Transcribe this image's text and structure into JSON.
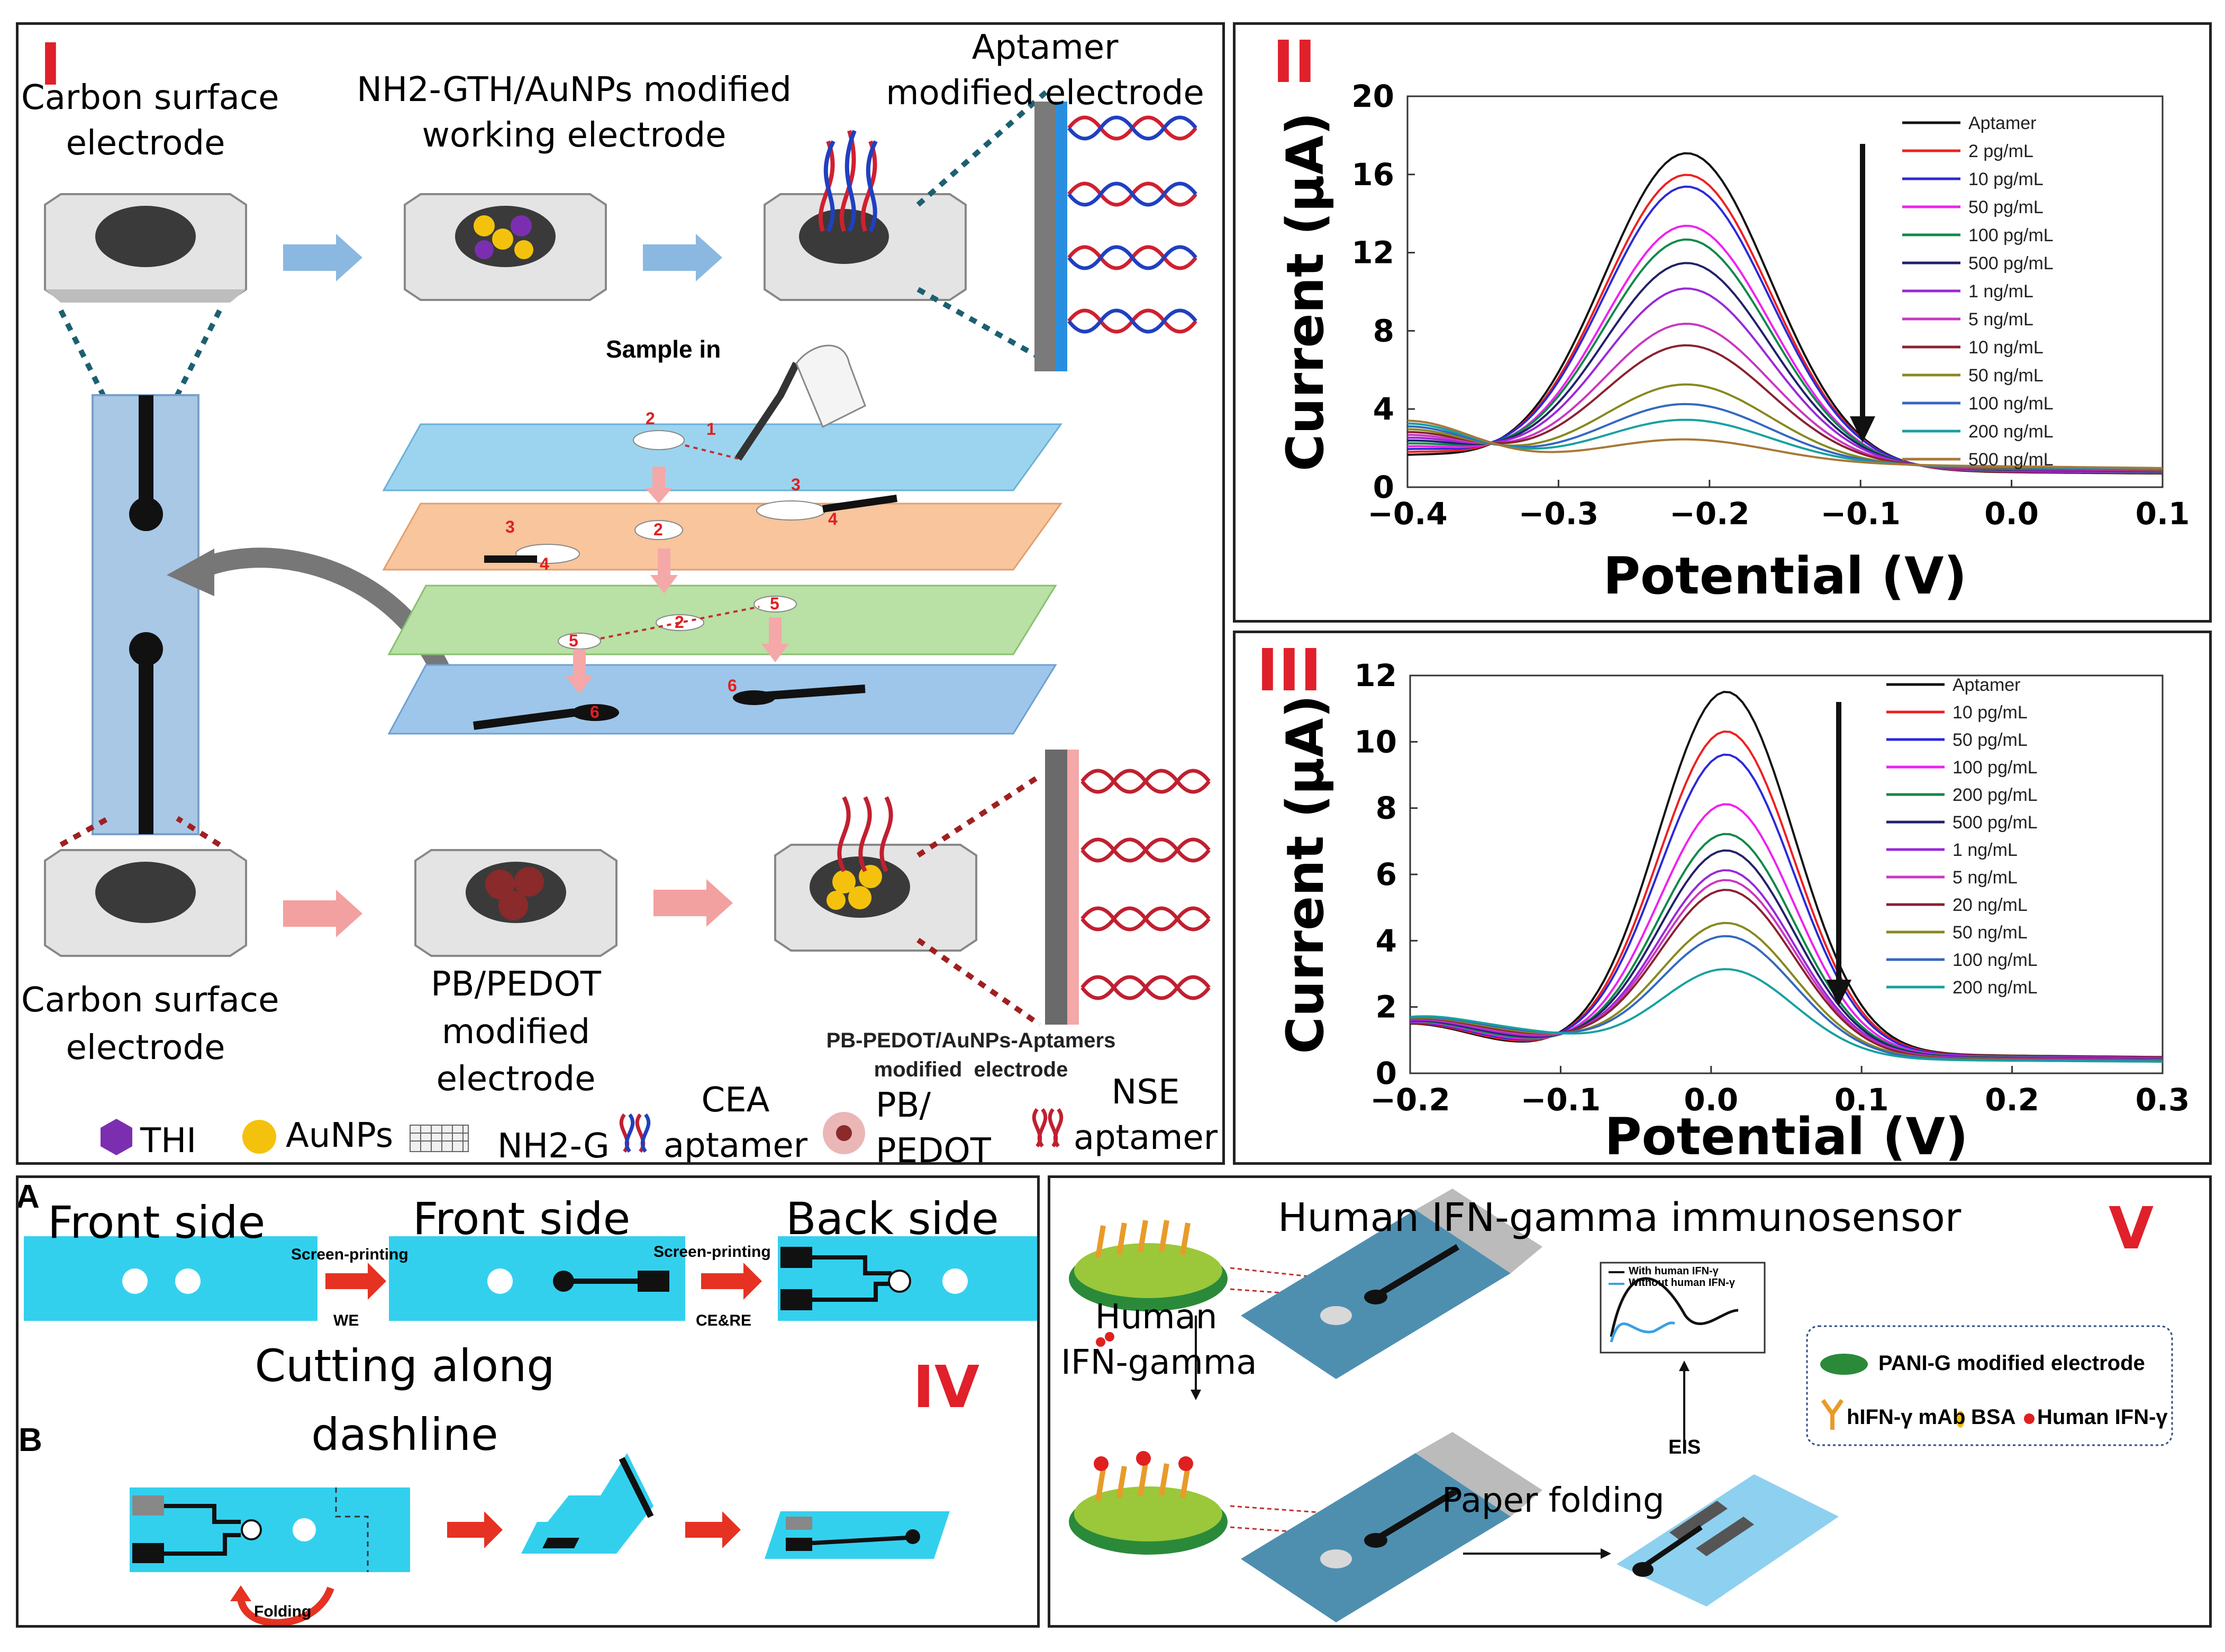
{
  "colors": {
    "roman": "#e0202a",
    "accent_blue": "#5aa7e0",
    "accent_red": "#f08c8c",
    "cyan": "#33d0ee",
    "teal": "#2d6f8f"
  },
  "panel_I": {
    "roman": "I",
    "carbon_top": "Carbon surface\nelectrode",
    "nh2_gth": "NH2-GTH/AuNPs modified\nworking electrode",
    "aptamer_mod": "Aptamer\nmodified electrode",
    "sample_in": "Sample in",
    "carbon_bottom": "Carbon surface\nelectrode",
    "pb_pedot": "PB/PEDOT\nmodified\nelectrode",
    "pb_pedot_aunps": "PB-PEDOT/AuNPs-Aptamers",
    "modified_electrode": "modified  electrode",
    "legend": {
      "thi": "THI",
      "aunps": "AuNPs",
      "nh2g": "NH2-G",
      "cea": "CEA\naptamer",
      "pbpedot": "PB/\nPEDOT",
      "nse": "NSE\naptamer"
    },
    "layer_numbers": [
      "1",
      "2",
      "2",
      "3",
      "3",
      "4",
      "4",
      "5",
      "2",
      "5",
      "6",
      "6"
    ]
  },
  "chart_data": [
    {
      "type": "line",
      "panel": "II",
      "title": "",
      "xlabel": "Potential (V)",
      "ylabel": "Current (μA)",
      "xlim": [
        -0.4,
        0.1
      ],
      "ylim": [
        0,
        20
      ],
      "xticks": [
        "-0.4",
        "-0.3",
        "-0.2",
        "-0.1",
        "0.0",
        "0.1"
      ],
      "yticks": [
        "0",
        "4",
        "8",
        "12",
        "16",
        "20"
      ],
      "peak_x": -0.215,
      "series": [
        {
          "name": "Aptamer",
          "color": "#111111",
          "peak": 17.2
        },
        {
          "name": "2 pg/mL",
          "color": "#ee2020",
          "peak": 16.1
        },
        {
          "name": "10 pg/mL",
          "color": "#2a2ad8",
          "peak": 15.5
        },
        {
          "name": "50 pg/mL",
          "color": "#ee22ee",
          "peak": 13.5
        },
        {
          "name": "100 pg/mL",
          "color": "#10884a",
          "peak": 12.8
        },
        {
          "name": "500 pg/mL",
          "color": "#22206a",
          "peak": 11.6
        },
        {
          "name": "1 ng/mL",
          "color": "#9a28d8",
          "peak": 10.3
        },
        {
          "name": "5 ng/mL",
          "color": "#c838c0",
          "peak": 8.5
        },
        {
          "name": "10 ng/mL",
          "color": "#8a2230",
          "peak": 7.4
        },
        {
          "name": "50 ng/mL",
          "color": "#888820",
          "peak": 5.4
        },
        {
          "name": "100 ng/mL",
          "color": "#3468c0",
          "peak": 4.4
        },
        {
          "name": "200 ng/mL",
          "color": "#18a0a0",
          "peak": 3.6
        },
        {
          "name": "500 ng/mL",
          "color": "#a87838",
          "peak": 2.6
        }
      ]
    },
    {
      "type": "line",
      "panel": "III",
      "title": "",
      "xlabel": "Potential (V)",
      "ylabel": "Current (μA)",
      "xlim": [
        -0.2,
        0.3
      ],
      "ylim": [
        0,
        12
      ],
      "xticks": [
        "-0.2",
        "-0.1",
        "0.0",
        "0.1",
        "0.2",
        "0.3"
      ],
      "yticks": [
        "0",
        "2",
        "4",
        "6",
        "8",
        "10",
        "12"
      ],
      "peak_x": 0.01,
      "series": [
        {
          "name": "Aptamer",
          "color": "#111111",
          "peak": 11.6
        },
        {
          "name": "10 pg/mL",
          "color": "#ee2020",
          "peak": 10.4
        },
        {
          "name": "50 pg/mL",
          "color": "#2a2ad8",
          "peak": 9.7
        },
        {
          "name": "100 pg/mL",
          "color": "#ee22ee",
          "peak": 8.2
        },
        {
          "name": "200 pg/mL",
          "color": "#10884a",
          "peak": 7.3
        },
        {
          "name": "500 pg/mL",
          "color": "#22206a",
          "peak": 6.8
        },
        {
          "name": "1 ng/mL",
          "color": "#9a28d8",
          "peak": 6.2
        },
        {
          "name": "5 ng/mL",
          "color": "#c838c0",
          "peak": 5.9
        },
        {
          "name": "20 ng/mL",
          "color": "#8a2230",
          "peak": 5.6
        },
        {
          "name": "50 ng/mL",
          "color": "#888820",
          "peak": 4.6
        },
        {
          "name": "100 ng/mL",
          "color": "#3468c0",
          "peak": 4.2
        },
        {
          "name": "200 ng/mL",
          "color": "#18a0a0",
          "peak": 3.2
        }
      ]
    }
  ],
  "panel_IV": {
    "roman": "IV",
    "label_a": "A",
    "label_b": "B",
    "front1": "Front side",
    "front2": "Front side",
    "back": "Back side",
    "screen1": "Screen-printing",
    "we": "WE",
    "screen2": "Screen-printing",
    "cere": "CE&RE",
    "cutting": "Cutting along\ndashline",
    "folding": "Folding"
  },
  "panel_V": {
    "roman": "V",
    "title": "Human IFN-gamma immunosensor",
    "human_ifn": "Human\nIFN-gamma",
    "paper_folding": "Paper folding",
    "eis": "EIS",
    "inset_with": "With human IFN-γ",
    "inset_without": "Without human IFN-γ",
    "legend_pani": "PANI-G modified electrode",
    "legend_mab": "hIFN-γ mAb",
    "legend_bsa": "BSA",
    "legend_human": "Human IFN-γ"
  }
}
